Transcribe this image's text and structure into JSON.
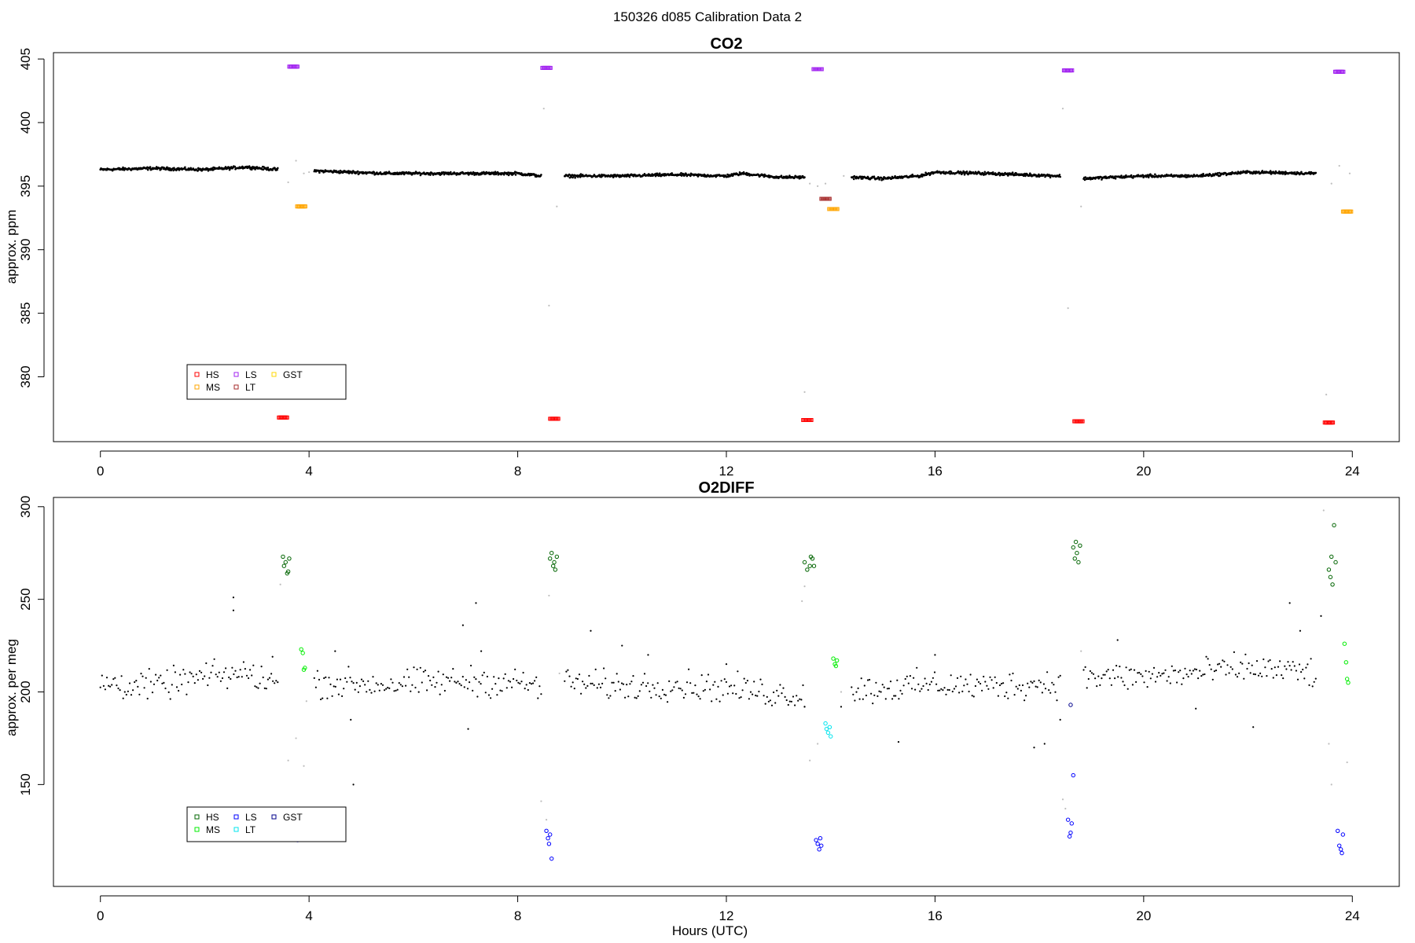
{
  "page": {
    "title": "150326   d085   Calibration Data 2"
  },
  "colors": {
    "HS_co2": "#ff0000",
    "MS_co2": "#ffa500",
    "LS_co2": "#a020f0",
    "LT_co2": "#a52a2a",
    "GST_co2": "#ffd700",
    "HS_o2": "#006400",
    "MS_o2": "#00ee00",
    "LS_o2": "#0000ff",
    "LT_o2": "#00e5ee",
    "GST_o2": "#00008b",
    "ambient": "#000000",
    "flush": "#bebebe"
  },
  "chart_data": [
    {
      "id": "co2",
      "type": "scatter",
      "title": "CO2",
      "xlabel": "",
      "ylabel": "approx. ppm",
      "xlim": [
        -0.9,
        24.9
      ],
      "ylim": [
        374.9,
        405.5
      ],
      "xticks": [
        "0",
        "4",
        "8",
        "12",
        "16",
        "20",
        "24"
      ],
      "yticks": [
        "380",
        "385",
        "390",
        "395",
        "400",
        "405"
      ],
      "legend": {
        "position": "bottom-left",
        "entries": [
          "HS",
          "MS",
          "LS",
          "LT",
          "GST"
        ]
      },
      "ambient_segments": [
        {
          "x": [
            0.0,
            1.0,
            2.0,
            2.8,
            3.4
          ],
          "y": [
            396.3,
            396.4,
            396.3,
            396.5,
            396.3
          ]
        },
        {
          "x": [
            4.1,
            5.5,
            7.0,
            8.0,
            8.45
          ],
          "y": [
            396.2,
            396.0,
            396.0,
            396.0,
            395.8
          ]
        },
        {
          "x": [
            8.9,
            10.0,
            11.0,
            12.0,
            12.3,
            13.0,
            13.5
          ],
          "y": [
            395.8,
            395.8,
            395.9,
            395.8,
            396.0,
            395.7,
            395.7
          ]
        },
        {
          "x": [
            14.4,
            15.0,
            15.7,
            16.0,
            17.0,
            18.4
          ],
          "y": [
            395.7,
            395.6,
            395.8,
            396.1,
            396.0,
            395.8
          ]
        },
        {
          "x": [
            18.85,
            20.0,
            21.0,
            22.0,
            23.3
          ],
          "y": [
            395.6,
            395.8,
            395.8,
            396.1,
            396.0
          ]
        }
      ],
      "flush_points": {
        "x": [
          3.6,
          3.75,
          3.9,
          4.0,
          8.5,
          8.6,
          8.75,
          13.5,
          13.6,
          13.75,
          13.9,
          14.25,
          18.45,
          18.55,
          18.8,
          23.5,
          23.6,
          23.75,
          23.95
        ],
        "y": [
          395.3,
          397.0,
          396.0,
          396.1,
          401.1,
          385.6,
          393.4,
          378.8,
          395.2,
          395.0,
          395.2,
          395.8,
          401.1,
          385.4,
          393.4,
          378.6,
          395.2,
          396.6,
          396.0
        ]
      },
      "series": [
        {
          "name": "HS",
          "x": [
            3.5,
            8.7,
            13.55,
            18.75,
            23.55
          ],
          "y": [
            376.8,
            376.7,
            376.6,
            376.5,
            376.4
          ]
        },
        {
          "name": "MS",
          "x": [
            3.85,
            14.05,
            23.9
          ],
          "y": [
            393.4,
            393.2,
            393.0
          ]
        },
        {
          "name": "LS",
          "x": [
            3.7,
            8.55,
            13.75,
            18.55,
            23.75
          ],
          "y": [
            404.4,
            404.3,
            404.2,
            404.1,
            404.0
          ]
        },
        {
          "name": "LT",
          "x": [
            13.9
          ],
          "y": [
            394.0
          ]
        },
        {
          "name": "GST",
          "x": [],
          "y": []
        }
      ]
    },
    {
      "id": "o2",
      "type": "scatter",
      "title": "O2DIFF",
      "xlabel": "Hours (UTC)",
      "ylabel": "approx. per meg",
      "xlim": [
        -0.9,
        24.9
      ],
      "ylim": [
        95,
        305
      ],
      "xticks": [
        "0",
        "4",
        "8",
        "12",
        "16",
        "20",
        "24"
      ],
      "yticks": [
        "150",
        "200",
        "250",
        "300"
      ],
      "legend": {
        "position": "bottom-left",
        "entries": [
          "HS",
          "MS",
          "LS",
          "LT",
          "GST"
        ]
      },
      "ambient_segments": [
        {
          "x": [
            0.0,
            1.0,
            2.0,
            2.8,
            3.4
          ],
          "y": [
            205,
            203,
            208,
            210,
            205
          ]
        },
        {
          "x": [
            4.1,
            5.5,
            7.0,
            8.0,
            8.45
          ],
          "y": [
            205,
            204,
            206,
            205,
            203
          ]
        },
        {
          "x": [
            8.9,
            10.0,
            11.0,
            12.0,
            13.0,
            13.5
          ],
          "y": [
            205,
            203,
            204,
            202,
            199,
            198
          ]
        },
        {
          "x": [
            14.4,
            15.0,
            16.0,
            17.0,
            18.4
          ],
          "y": [
            201,
            202,
            204,
            203,
            205
          ]
        },
        {
          "x": [
            18.85,
            20.0,
            21.0,
            22.0,
            23.3
          ],
          "y": [
            208,
            208,
            210,
            213,
            210
          ]
        }
      ],
      "outliers": {
        "x": [
          2.55,
          2.55,
          3.3,
          4.5,
          4.8,
          4.85,
          6.95,
          7.05,
          7.2,
          7.3,
          9.4,
          10.0,
          10.5,
          12.0,
          13.5,
          14.2,
          15.3,
          16.0,
          17.9,
          18.1,
          18.4,
          19.5,
          21.0,
          22.1,
          22.8,
          23.0,
          23.4
        ],
        "y": [
          251,
          244,
          219,
          222,
          185,
          150,
          236,
          180,
          248,
          222,
          233,
          225,
          220,
          215,
          192,
          192,
          173,
          220,
          170,
          172,
          185,
          228,
          191,
          181,
          248,
          233,
          241
        ]
      },
      "flush_points": {
        "x": [
          3.45,
          3.6,
          3.75,
          3.9,
          3.95,
          8.45,
          8.55,
          8.6,
          8.8,
          13.45,
          13.5,
          13.6,
          13.75,
          14.2,
          18.45,
          18.5,
          18.8,
          23.45,
          23.55,
          23.6,
          23.9
        ],
        "y": [
          258,
          163,
          175,
          160,
          195,
          141,
          131,
          252,
          210,
          249,
          257,
          163,
          172,
          200,
          142,
          137,
          222,
          298,
          172,
          150,
          162
        ]
      },
      "series": [
        {
          "name": "HS",
          "x": [
            3.5,
            3.52,
            3.55,
            3.58,
            3.6,
            3.62,
            8.62,
            8.65,
            8.68,
            8.7,
            8.72,
            8.75,
            13.5,
            13.55,
            13.6,
            13.62,
            13.65,
            13.68,
            18.65,
            18.68,
            18.7,
            18.72,
            18.75,
            18.78,
            23.55,
            23.58,
            23.6,
            23.62,
            23.65,
            23.68
          ],
          "y": [
            273,
            268,
            270,
            264,
            265,
            272,
            272,
            275,
            268,
            270,
            266,
            273,
            270,
            266,
            268,
            273,
            272,
            268,
            278,
            272,
            281,
            275,
            270,
            279,
            266,
            262,
            273,
            258,
            290,
            270
          ]
        },
        {
          "name": "MS",
          "x": [
            3.85,
            3.88,
            3.9,
            3.92,
            14.05,
            14.08,
            14.1,
            14.12,
            23.85,
            23.88,
            23.9,
            23.92
          ],
          "y": [
            223,
            221,
            212,
            213,
            218,
            215,
            214,
            217,
            226,
            216,
            207,
            205
          ]
        },
        {
          "name": "LS",
          "x": [
            3.7,
            3.72,
            3.75,
            3.78,
            3.8,
            8.55,
            8.58,
            8.6,
            8.62,
            8.65,
            13.72,
            13.75,
            13.78,
            13.8,
            13.82,
            18.55,
            18.58,
            18.6,
            18.62,
            18.65,
            23.72,
            23.75,
            23.78,
            23.8,
            23.82
          ],
          "y": [
            123,
            121,
            124,
            120,
            122,
            125,
            121,
            118,
            123,
            110,
            120,
            118,
            115,
            121,
            117,
            131,
            122,
            124,
            129,
            155,
            125,
            117,
            115,
            113,
            123
          ]
        },
        {
          "name": "LT",
          "x": [
            13.9,
            13.92,
            13.95,
            13.98,
            14.0
          ],
          "y": [
            183,
            180,
            178,
            181,
            176
          ]
        },
        {
          "name": "GST",
          "x": [
            18.6
          ],
          "y": [
            193
          ]
        }
      ]
    }
  ]
}
